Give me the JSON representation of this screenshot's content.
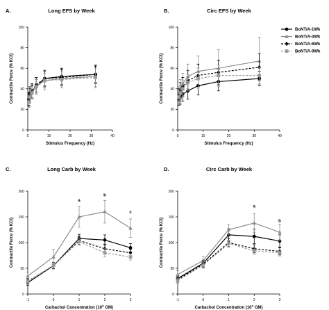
{
  "series_styles": [
    {
      "name": "BoNT/A-1Wk",
      "color": "#000000",
      "dash": "",
      "marker": "circle"
    },
    {
      "name": "BoNT/A-3Wk",
      "color": "#8c8c8c",
      "dash": "",
      "marker": "triangle"
    },
    {
      "name": "BoNT/A-6Wk",
      "color": "#000000",
      "dash": "3,2",
      "marker": "diamond"
    },
    {
      "name": "BoNT/A-9Wk",
      "color": "#9a9a9a",
      "dash": "3,2",
      "marker": "square"
    }
  ],
  "chart_data": [
    {
      "id": "A",
      "letter": "A.",
      "title": "Long EFS by Week",
      "type": "line",
      "xlabel": "Stimulus Frequency (Hz)",
      "ylabel": "Contractile Force (% KCl)",
      "xlim": [
        0,
        40
      ],
      "ylim": [
        0,
        100
      ],
      "xticks": [
        0,
        10,
        20,
        30,
        40
      ],
      "yticks": [
        0,
        20,
        40,
        60,
        80,
        100
      ],
      "xtick_labels": [
        "0",
        "10",
        "20",
        "30",
        "40"
      ],
      "ytick_labels": [
        "0",
        "20",
        "40",
        "60",
        "80",
        "100"
      ],
      "x": [
        0.5,
        1,
        2,
        4,
        8,
        16,
        32
      ],
      "series": [
        {
          "name": "BoNT/A-1Wk",
          "values": [
            30,
            36,
            37,
            42,
            50,
            52,
            54
          ],
          "errors": [
            6,
            6,
            6,
            7,
            7,
            8,
            8
          ]
        },
        {
          "name": "BoNT/A-3Wk",
          "values": [
            28,
            33,
            37,
            43,
            48,
            50,
            52
          ],
          "errors": [
            6,
            7,
            7,
            8,
            9,
            9,
            11
          ]
        },
        {
          "name": "BoNT/A-6Wk",
          "values": [
            29,
            34,
            38,
            44,
            50,
            51,
            54
          ],
          "errors": [
            6,
            6,
            7,
            7,
            8,
            8,
            9
          ]
        },
        {
          "name": "BoNT/A-9Wk",
          "values": [
            27,
            32,
            36,
            42,
            48,
            49,
            51
          ],
          "errors": [
            5,
            6,
            6,
            7,
            7,
            8,
            9
          ]
        }
      ],
      "annotations": []
    },
    {
      "id": "B",
      "letter": "B.",
      "title": "Circ EFS by Week",
      "type": "line",
      "xlabel": "Stimulus Frequency (Hz)",
      "ylabel": "Contractile Force (% KCl)",
      "xlim": [
        0,
        40
      ],
      "ylim": [
        0,
        100
      ],
      "xticks": [
        0,
        10,
        20,
        30,
        40
      ],
      "yticks": [
        0,
        20,
        40,
        60,
        80,
        100
      ],
      "xtick_labels": [
        "0",
        "10",
        "20",
        "30",
        "40"
      ],
      "ytick_labels": [
        "0",
        "20",
        "40",
        "60",
        "80",
        "100"
      ],
      "x": [
        0.5,
        1,
        2,
        4,
        8,
        16,
        32
      ],
      "series": [
        {
          "name": "BoNT/A-1Wk",
          "values": [
            30,
            32,
            35,
            38,
            43,
            47,
            50
          ],
          "errors": [
            6,
            7,
            7,
            8,
            9,
            9,
            7
          ]
        },
        {
          "name": "BoNT/A-3Wk",
          "values": [
            35,
            40,
            45,
            52,
            57,
            60,
            67
          ],
          "errors": [
            7,
            9,
            10,
            12,
            15,
            18,
            23
          ]
        },
        {
          "name": "BoNT/A-6Wk",
          "values": [
            34,
            38,
            42,
            48,
            53,
            56,
            61
          ],
          "errors": [
            6,
            8,
            9,
            10,
            11,
            12,
            13
          ]
        },
        {
          "name": "BoNT/A-9Wk",
          "values": [
            32,
            36,
            40,
            46,
            50,
            53,
            53
          ],
          "errors": [
            6,
            7,
            8,
            8,
            10,
            10,
            8
          ]
        }
      ],
      "annotations": []
    },
    {
      "id": "C",
      "letter": "C.",
      "title": "Long Carb by Week",
      "type": "line",
      "xlabel_parts": [
        "Carbachol Concentration (10",
        "X",
        " OM)"
      ],
      "ylabel": "Contractile Force (% KCl)",
      "xlim": [
        -1,
        3
      ],
      "ylim": [
        0,
        200
      ],
      "xticks": [
        -1,
        0,
        1,
        2,
        3
      ],
      "yticks": [
        0,
        50,
        100,
        150,
        200
      ],
      "xtick_labels": [
        "-1",
        "0",
        "1",
        "2",
        "3"
      ],
      "ytick_labels": [
        "0",
        "50",
        "100",
        "150",
        "200"
      ],
      "x": [
        -1,
        0,
        1,
        2,
        3
      ],
      "series": [
        {
          "name": "BoNT/A-1Wk",
          "values": [
            22,
            55,
            108,
            105,
            90
          ],
          "errors": [
            5,
            6,
            8,
            10,
            8
          ]
        },
        {
          "name": "BoNT/A-3Wk",
          "values": [
            35,
            72,
            150,
            160,
            128
          ],
          "errors": [
            7,
            15,
            20,
            22,
            18
          ]
        },
        {
          "name": "BoNT/A-6Wk",
          "values": [
            25,
            55,
            104,
            88,
            80
          ],
          "errors": [
            5,
            6,
            8,
            9,
            7
          ]
        },
        {
          "name": "BoNT/A-9Wk",
          "values": [
            24,
            56,
            102,
            80,
            72
          ],
          "errors": [
            5,
            6,
            7,
            8,
            6
          ]
        }
      ],
      "annotations": [
        {
          "x": 1,
          "y": 180,
          "text": "a"
        },
        {
          "x": 2,
          "y": 190,
          "text": "b"
        },
        {
          "x": 3,
          "y": 157,
          "text": "c"
        }
      ]
    },
    {
      "id": "D",
      "letter": "D.",
      "title": "Circ Carb by Week",
      "type": "line",
      "xlabel_parts": [
        "Carbachol Concentration (10",
        "X",
        " OM)"
      ],
      "ylabel": "Contractile Force (% KCl)",
      "xlim": [
        -1,
        3
      ],
      "ylim": [
        0,
        200
      ],
      "xticks": [
        -1,
        0,
        1,
        2,
        3
      ],
      "yticks": [
        0,
        50,
        100,
        150,
        200
      ],
      "xtick_labels": [
        "-1",
        "0",
        "1",
        "2",
        "3"
      ],
      "ytick_labels": [
        "0",
        "50",
        "100",
        "150",
        "200"
      ],
      "x": [
        -1,
        0,
        1,
        2,
        3
      ],
      "series": [
        {
          "name": "BoNT/A-1Wk",
          "values": [
            30,
            60,
            115,
            112,
            103
          ],
          "errors": [
            5,
            6,
            12,
            14,
            12
          ]
        },
        {
          "name": "BoNT/A-3Wk",
          "values": [
            38,
            65,
            125,
            138,
            120
          ],
          "errors": [
            7,
            8,
            10,
            18,
            16
          ]
        },
        {
          "name": "BoNT/A-6Wk",
          "values": [
            28,
            58,
            100,
            88,
            83
          ],
          "errors": [
            5,
            6,
            8,
            8,
            7
          ]
        },
        {
          "name": "BoNT/A-9Wk",
          "values": [
            26,
            56,
            98,
            84,
            80
          ],
          "errors": [
            5,
            6,
            7,
            7,
            6
          ]
        }
      ],
      "annotations": [
        {
          "x": 2,
          "y": 168,
          "text": "a"
        },
        {
          "x": 3,
          "y": 140,
          "text": "b"
        }
      ]
    }
  ]
}
